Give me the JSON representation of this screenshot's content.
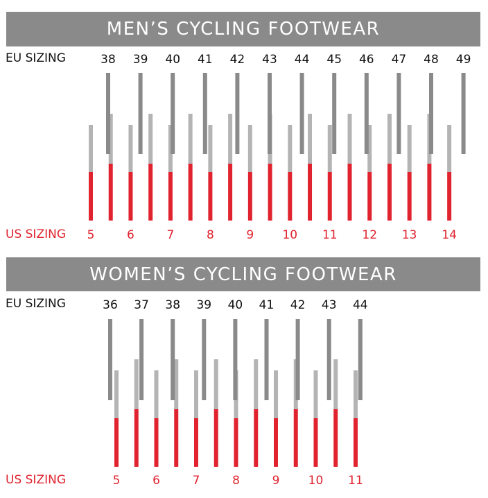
{
  "colors": {
    "banner": "#8a8a8a",
    "eu_bar": "#8a8a8a",
    "us_bar_light": "#b4b4b4",
    "us_bar_red": "#e0232f",
    "eu_text": "#111111",
    "us_text": "#e0232f"
  },
  "sections": [
    {
      "title": "MEN’S CYCLING FOOTWEAR",
      "eu_label": "EU SIZING",
      "us_label": "US SIZING"
    },
    {
      "title": "WOMEN’S CYCLING FOOTWEAR",
      "eu_label": "EU SIZING",
      "us_label": "US SIZING"
    }
  ],
  "chart_data": [
    {
      "type": "bar",
      "title": "MEN’S CYCLING FOOTWEAR",
      "eu_sizes": [
        "38",
        "39",
        "40",
        "41",
        "42",
        "43",
        "44",
        "45",
        "46",
        "47",
        "48",
        "49"
      ],
      "us_sizes": [
        {
          "size": "5",
          "labeled": true
        },
        {
          "size": "5.5",
          "labeled": false
        },
        {
          "size": "6",
          "labeled": true
        },
        {
          "size": "6.5",
          "labeled": false
        },
        {
          "size": "7",
          "labeled": true
        },
        {
          "size": "7.5",
          "labeled": false
        },
        {
          "size": "8",
          "labeled": true
        },
        {
          "size": "8.5",
          "labeled": false
        },
        {
          "size": "9",
          "labeled": true
        },
        {
          "size": "9.5",
          "labeled": false
        },
        {
          "size": "10",
          "labeled": true
        },
        {
          "size": "10.5",
          "labeled": false
        },
        {
          "size": "11",
          "labeled": true
        },
        {
          "size": "11.5",
          "labeled": false
        },
        {
          "size": "12",
          "labeled": true
        },
        {
          "size": "12.5",
          "labeled": false
        },
        {
          "size": "13",
          "labeled": true
        },
        {
          "size": "13.5",
          "labeled": false
        },
        {
          "size": "14",
          "labeled": true
        }
      ]
    },
    {
      "type": "bar",
      "title": "WOMEN’S CYCLING FOOTWEAR",
      "eu_sizes": [
        "36",
        "37",
        "38",
        "39",
        "40",
        "41",
        "42",
        "43",
        "44"
      ],
      "us_sizes": [
        {
          "size": "5",
          "labeled": true
        },
        {
          "size": "5.5",
          "labeled": false
        },
        {
          "size": "6",
          "labeled": true
        },
        {
          "size": "6.5",
          "labeled": false
        },
        {
          "size": "7",
          "labeled": true
        },
        {
          "size": "7.5",
          "labeled": false
        },
        {
          "size": "8",
          "labeled": true
        },
        {
          "size": "8.5",
          "labeled": false
        },
        {
          "size": "9",
          "labeled": true
        },
        {
          "size": "9.5",
          "labeled": false
        },
        {
          "size": "10",
          "labeled": true
        },
        {
          "size": "10.5",
          "labeled": false
        },
        {
          "size": "11",
          "labeled": true
        }
      ]
    }
  ]
}
